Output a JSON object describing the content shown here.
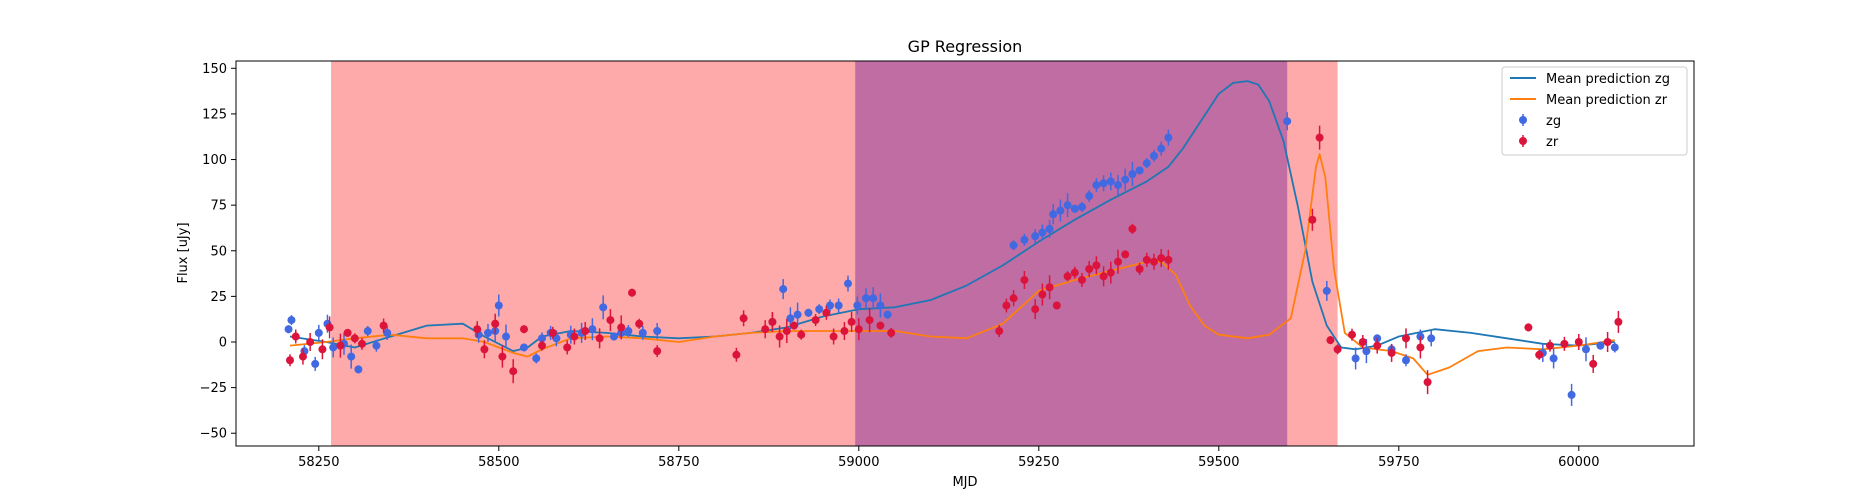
{
  "chart_data": {
    "type": "scatter",
    "title": "GP Regression",
    "xlabel": "MJD",
    "ylabel": "Flux [uJy]",
    "xlim": [
      58135,
      60160
    ],
    "ylim": [
      -57,
      154
    ],
    "xticks": [
      58250,
      58500,
      58750,
      59000,
      59250,
      59500,
      59750,
      60000
    ],
    "yticks": [
      -50,
      -25,
      0,
      25,
      50,
      75,
      100,
      125,
      150
    ],
    "grid": false,
    "legend_position": "top-right",
    "spans": [
      {
        "x0": 58267,
        "x1": 59665,
        "color": "#ff5555",
        "alpha": 0.5
      },
      {
        "x0": 58995,
        "x1": 59595,
        "color": "#8a3a9c",
        "alpha": 0.55
      }
    ],
    "lines": [
      {
        "name": "Mean prediction zg",
        "color": "#1f77b4",
        "x": [
          58210,
          58260,
          58300,
          58350,
          58400,
          58450,
          58480,
          58520,
          58540,
          58560,
          58600,
          58650,
          58700,
          58750,
          58800,
          58850,
          58900,
          58950,
          59000,
          59050,
          59100,
          59150,
          59200,
          59250,
          59300,
          59350,
          59400,
          59430,
          59450,
          59480,
          59500,
          59520,
          59540,
          59555,
          59570,
          59590,
          59610,
          59630,
          59650,
          59670,
          59690,
          59720,
          59750,
          59800,
          59850,
          59900,
          59950,
          60000,
          60050
        ],
        "y": [
          3,
          0,
          -3,
          3,
          9,
          10,
          3,
          -5,
          -3,
          3,
          6,
          5,
          3,
          2,
          3,
          5,
          8,
          14,
          18,
          19,
          23,
          31,
          42,
          55,
          67,
          78,
          88,
          96,
          106,
          124,
          136,
          142,
          143,
          141,
          132,
          110,
          74,
          33,
          9,
          -3,
          -4,
          -2,
          3,
          7,
          5,
          2,
          -1,
          -2,
          0
        ]
      },
      {
        "name": "Mean prediction zr",
        "color": "#ff7f0e",
        "x": [
          58210,
          58260,
          58300,
          58350,
          58400,
          58450,
          58480,
          58520,
          58540,
          58560,
          58600,
          58650,
          58700,
          58750,
          58800,
          58850,
          58900,
          58950,
          59000,
          59050,
          59100,
          59150,
          59200,
          59250,
          59300,
          59350,
          59380,
          59400,
          59420,
          59440,
          59460,
          59480,
          59500,
          59540,
          59570,
          59600,
          59620,
          59635,
          59640,
          59648,
          59660,
          59675,
          59700,
          59740,
          59770,
          59790,
          59820,
          59860,
          59900,
          59950,
          60000,
          60050
        ],
        "y": [
          -2,
          0,
          2,
          4,
          2,
          2,
          0,
          -6,
          -8,
          -4,
          2,
          3,
          2,
          0,
          3,
          5,
          6,
          6,
          6,
          6,
          3,
          2,
          10,
          28,
          34,
          39,
          42,
          44,
          44,
          37,
          20,
          9,
          4,
          2,
          4,
          13,
          50,
          96,
          103,
          90,
          40,
          5,
          -3,
          -5,
          -9,
          -18,
          -14,
          -5,
          -3,
          -4,
          -2,
          1
        ]
      }
    ],
    "series": [
      {
        "name": "zg",
        "color": "#4169e1",
        "x": [
          58208,
          58212,
          58230,
          58245,
          58250,
          58262,
          58270,
          58285,
          58295,
          58305,
          58318,
          58330,
          58345,
          58472,
          58485,
          58495,
          58500,
          58510,
          58535,
          58552,
          58560,
          58572,
          58580,
          58600,
          58615,
          58630,
          58645,
          58660,
          58670,
          58680,
          58700,
          58720,
          58880,
          58895,
          58905,
          58915,
          58930,
          58945,
          58960,
          58972,
          58985,
          58998,
          59010,
          59020,
          59030,
          59040,
          59215,
          59230,
          59245,
          59255,
          59265,
          59270,
          59280,
          59290,
          59300,
          59310,
          59320,
          59330,
          59340,
          59350,
          59360,
          59370,
          59380,
          59390,
          59400,
          59410,
          59420,
          59430,
          59595,
          59650,
          59690,
          59705,
          59720,
          59740,
          59760,
          59780,
          59795,
          59950,
          59965,
          59990,
          60010,
          60030,
          60050
        ],
        "y": [
          7,
          12,
          -5,
          -12,
          5,
          10,
          -3,
          -1,
          -8,
          -15,
          6,
          -2,
          5,
          4,
          5,
          6,
          20,
          3,
          -3,
          -9,
          2,
          5,
          2,
          4,
          5,
          7,
          19,
          3,
          5,
          6,
          5,
          6,
          11,
          29,
          13,
          15,
          16,
          18,
          20,
          20,
          32,
          20,
          24,
          24,
          20,
          15,
          53,
          56,
          58,
          60,
          62,
          70,
          72,
          75,
          73,
          74,
          80,
          86,
          87,
          88,
          86,
          89,
          92,
          94,
          98,
          102,
          106,
          112,
          121,
          28,
          -9,
          -5,
          2,
          -4,
          -10,
          3,
          2,
          -6,
          -9,
          -29,
          -4,
          -2,
          -3
        ]
      },
      {
        "name": "zr",
        "color": "#dc143c",
        "x": [
          58210,
          58218,
          58228,
          58238,
          58255,
          58265,
          58280,
          58290,
          58300,
          58310,
          58340,
          58470,
          58480,
          58495,
          58505,
          58520,
          58535,
          58560,
          58575,
          58595,
          58605,
          58620,
          58640,
          58655,
          58670,
          58685,
          58695,
          58720,
          58830,
          58840,
          58870,
          58880,
          58890,
          58900,
          58910,
          58920,
          58940,
          58955,
          58965,
          58980,
          58990,
          59000,
          59015,
          59030,
          59045,
          59195,
          59205,
          59215,
          59230,
          59245,
          59255,
          59265,
          59275,
          59290,
          59300,
          59310,
          59320,
          59330,
          59340,
          59350,
          59360,
          59370,
          59380,
          59390,
          59400,
          59410,
          59420,
          59430,
          59630,
          59640,
          59655,
          59665,
          59685,
          59700,
          59720,
          59740,
          59760,
          59780,
          59790,
          59930,
          59945,
          59960,
          59980,
          60000,
          60020,
          60040,
          60055
        ],
        "y": [
          -10,
          3,
          -8,
          0,
          -4,
          8,
          -2,
          5,
          2,
          -1,
          9,
          7,
          -4,
          10,
          -8,
          -16,
          7,
          -2,
          5,
          -3,
          3,
          6,
          2,
          12,
          8,
          27,
          10,
          -5,
          -7,
          13,
          7,
          11,
          3,
          6,
          9,
          4,
          12,
          16,
          3,
          6,
          11,
          7,
          12,
          9,
          5,
          6,
          20,
          24,
          34,
          18,
          26,
          30,
          20,
          36,
          38,
          34,
          40,
          42,
          36,
          38,
          44,
          48,
          62,
          40,
          45,
          44,
          46,
          45,
          67,
          112,
          1,
          -4,
          4,
          0,
          -2,
          -6,
          2,
          -3,
          -22,
          8,
          -7,
          -2,
          -1,
          0,
          -12,
          0,
          11
        ]
      }
    ]
  }
}
